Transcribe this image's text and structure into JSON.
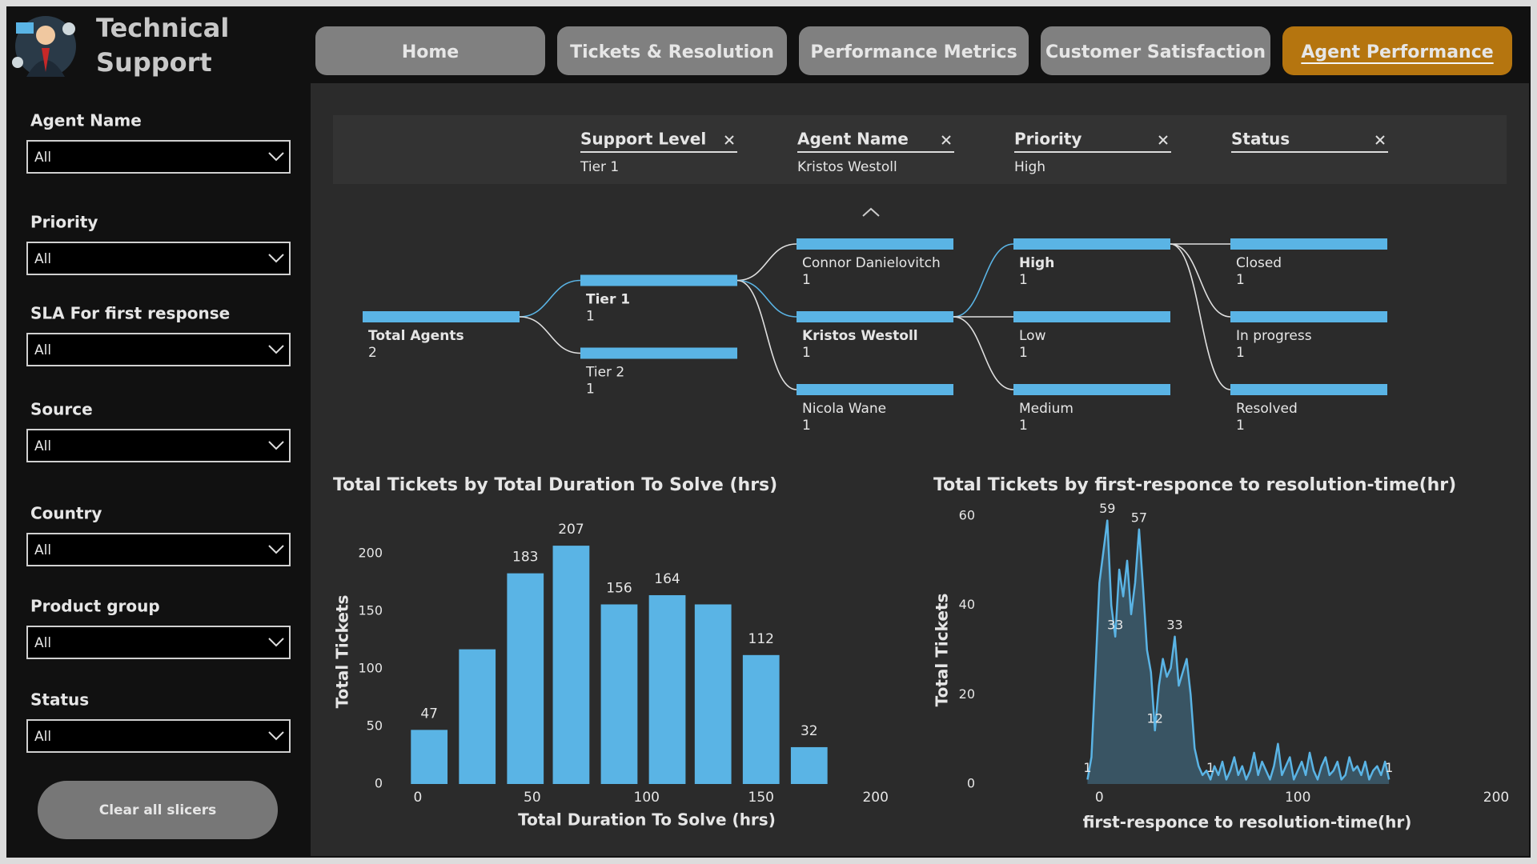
{
  "header": {
    "title": "Technical Support"
  },
  "tabs": {
    "items": [
      "Home",
      "Tickets & Resolution",
      "Performance Metrics",
      "Customer Satisfaction",
      "Agent Performance"
    ],
    "active": 4
  },
  "slicers": {
    "items": [
      {
        "label": "Agent Name",
        "value": "All"
      },
      {
        "label": "Priority",
        "value": "All"
      },
      {
        "label": "SLA For first response",
        "value": "All"
      },
      {
        "label": "Source",
        "value": "All"
      },
      {
        "label": "Country",
        "value": "All"
      },
      {
        "label": "Product group",
        "value": "All"
      },
      {
        "label": "Status",
        "value": "All"
      }
    ],
    "clear_button": "Clear all slicers"
  },
  "filters": [
    {
      "field": "Support Level",
      "value": "Tier 1"
    },
    {
      "field": "Agent Name",
      "value": "Kristos Westoll"
    },
    {
      "field": "Priority",
      "value": "High"
    },
    {
      "field": "Status"
    }
  ],
  "decomposition_tree": {
    "levels": [
      {
        "nodes": [
          {
            "label": "Total Agents",
            "value": 2
          }
        ],
        "selected": 0
      },
      {
        "nodes": [
          {
            "label": "Tier 1",
            "value": 1
          },
          {
            "label": "Tier 2",
            "value": 1
          }
        ],
        "selected": 0
      },
      {
        "nodes": [
          {
            "label": "Connor Danielovitch",
            "value": 1
          },
          {
            "label": "Kristos Westoll",
            "value": 1
          },
          {
            "label": "Nicola Wane",
            "value": 1
          }
        ],
        "selected": 1
      },
      {
        "nodes": [
          {
            "label": "High",
            "value": 1
          },
          {
            "label": "Low",
            "value": 1
          },
          {
            "label": "Medium",
            "value": 1
          }
        ],
        "selected": 0
      },
      {
        "nodes": [
          {
            "label": "Closed",
            "value": 1
          },
          {
            "label": "In progress",
            "value": 1
          },
          {
            "label": "Resolved",
            "value": 1
          }
        ]
      }
    ]
  },
  "chart_data": [
    {
      "type": "bar",
      "title": "Total Tickets by Total Duration To Solve (hrs)",
      "x_label": "Total Duration To Solve (hrs)",
      "y_label": "Total Tickets",
      "x": [
        5,
        26,
        47,
        67,
        88,
        109,
        129,
        150,
        171
      ],
      "values": [
        47,
        117,
        183,
        207,
        156,
        164,
        156,
        112,
        32
      ],
      "value_labels": [
        47,
        null,
        183,
        207,
        156,
        164,
        null,
        112,
        32
      ],
      "color": "#5ab4e5",
      "xlim": [
        -8,
        205
      ],
      "xticks": [
        0,
        50,
        100,
        150,
        200
      ],
      "ylim": [
        0,
        230
      ],
      "yticks": [
        0,
        50,
        100,
        150,
        200
      ],
      "grid": false
    },
    {
      "type": "area",
      "title": "Total Tickets by first-responce to resolution-time(hr)",
      "x_label": "first-responce to resolution-time(hr)",
      "y_label": "Total Tickets",
      "x": [
        -6,
        -4,
        -2,
        0,
        2,
        4,
        6,
        8,
        10,
        12,
        14,
        16,
        18,
        20,
        22,
        24,
        26,
        28,
        30,
        32,
        34,
        36,
        38,
        40,
        42,
        44,
        46,
        48,
        50,
        52,
        54,
        56,
        58,
        60,
        62,
        64,
        66,
        68,
        70,
        72,
        74,
        76,
        78,
        80,
        82,
        84,
        86,
        88,
        90,
        92,
        94,
        96,
        98,
        100,
        102,
        104,
        106,
        108,
        110,
        112,
        114,
        116,
        118,
        120,
        122,
        124,
        126,
        128,
        130,
        132,
        134,
        136,
        138,
        140,
        142,
        144,
        146
      ],
      "values": [
        1,
        6,
        25,
        45,
        52,
        59,
        40,
        33,
        48,
        42,
        50,
        38,
        45,
        57,
        44,
        30,
        25,
        12,
        22,
        28,
        24,
        26,
        33,
        22,
        25,
        28,
        20,
        8,
        4,
        2,
        3,
        1,
        4,
        2,
        5,
        1,
        3,
        6,
        2,
        4,
        1,
        3,
        7,
        2,
        5,
        3,
        1,
        4,
        9,
        2,
        4,
        6,
        1,
        3,
        5,
        2,
        7,
        3,
        1,
        4,
        6,
        2,
        3,
        5,
        1,
        2,
        6,
        3,
        4,
        2,
        5,
        1,
        3,
        4,
        2,
        5,
        1
      ],
      "value_labels": [
        1,
        null,
        null,
        null,
        null,
        59,
        null,
        33,
        null,
        null,
        null,
        null,
        null,
        57,
        null,
        null,
        null,
        12,
        null,
        null,
        null,
        null,
        33,
        null,
        null,
        null,
        null,
        null,
        null,
        null,
        null,
        1,
        null,
        null,
        null,
        null,
        null,
        null,
        null,
        null,
        null,
        null,
        null,
        null,
        null,
        null,
        null,
        null,
        null,
        null,
        null,
        null,
        null,
        null,
        null,
        null,
        null,
        null,
        null,
        null,
        null,
        null,
        null,
        null,
        null,
        null,
        null,
        null,
        null,
        null,
        null,
        null,
        null,
        null,
        null,
        null,
        1
      ],
      "color": "#5ab4e5",
      "xlim": [
        -7,
        200
      ],
      "xticks": [
        0,
        100,
        200
      ],
      "ylim": [
        0,
        60
      ],
      "yticks": [
        0,
        20,
        40,
        60
      ],
      "grid": false
    }
  ]
}
